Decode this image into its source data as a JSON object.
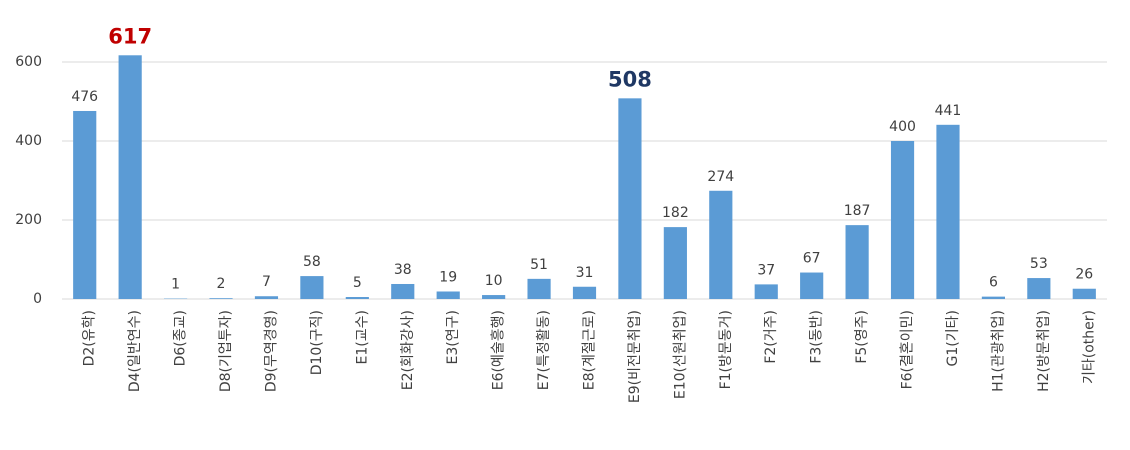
{
  "chart_data": {
    "type": "bar",
    "categories": [
      "D2(유학)",
      "D4(일반연수)",
      "D6(종교)",
      "D8(기업투자)",
      "D9(무역경영)",
      "D10(구직)",
      "E1(교수)",
      "E2(회화강사)",
      "E3(연구)",
      "E6(예술흥행)",
      "E7(특정활동)",
      "E8(계절근로)",
      "E9(비전문취업)",
      "E10(선원취업)",
      "F1(방문동거)",
      "F2(거주)",
      "F3(동반)",
      "F5(영주)",
      "F6(결혼이민)",
      "G1(기타)",
      "H1(관광취업)",
      "H2(방문취업)",
      "기타(other)"
    ],
    "values": [
      476,
      617,
      1,
      2,
      7,
      58,
      5,
      38,
      19,
      10,
      51,
      31,
      508,
      182,
      274,
      37,
      67,
      187,
      400,
      441,
      6,
      53,
      26
    ],
    "value_label_colors": [
      "#404040",
      "#c00000",
      "#404040",
      "#404040",
      "#404040",
      "#404040",
      "#404040",
      "#404040",
      "#404040",
      "#404040",
      "#404040",
      "#404040",
      "#1f3864",
      "#404040",
      "#404040",
      "#404040",
      "#404040",
      "#404040",
      "#404040",
      "#404040",
      "#404040",
      "#404040",
      "#404040"
    ],
    "value_label_weights": [
      "normal",
      "bold",
      "normal",
      "normal",
      "normal",
      "normal",
      "normal",
      "normal",
      "normal",
      "normal",
      "normal",
      "normal",
      "bold",
      "normal",
      "normal",
      "normal",
      "normal",
      "normal",
      "normal",
      "normal",
      "normal",
      "normal",
      "normal"
    ],
    "color": "#5b9bd5",
    "ylim": [
      0,
      600
    ],
    "yticks": [
      0,
      200,
      400,
      600
    ],
    "grid": true
  }
}
